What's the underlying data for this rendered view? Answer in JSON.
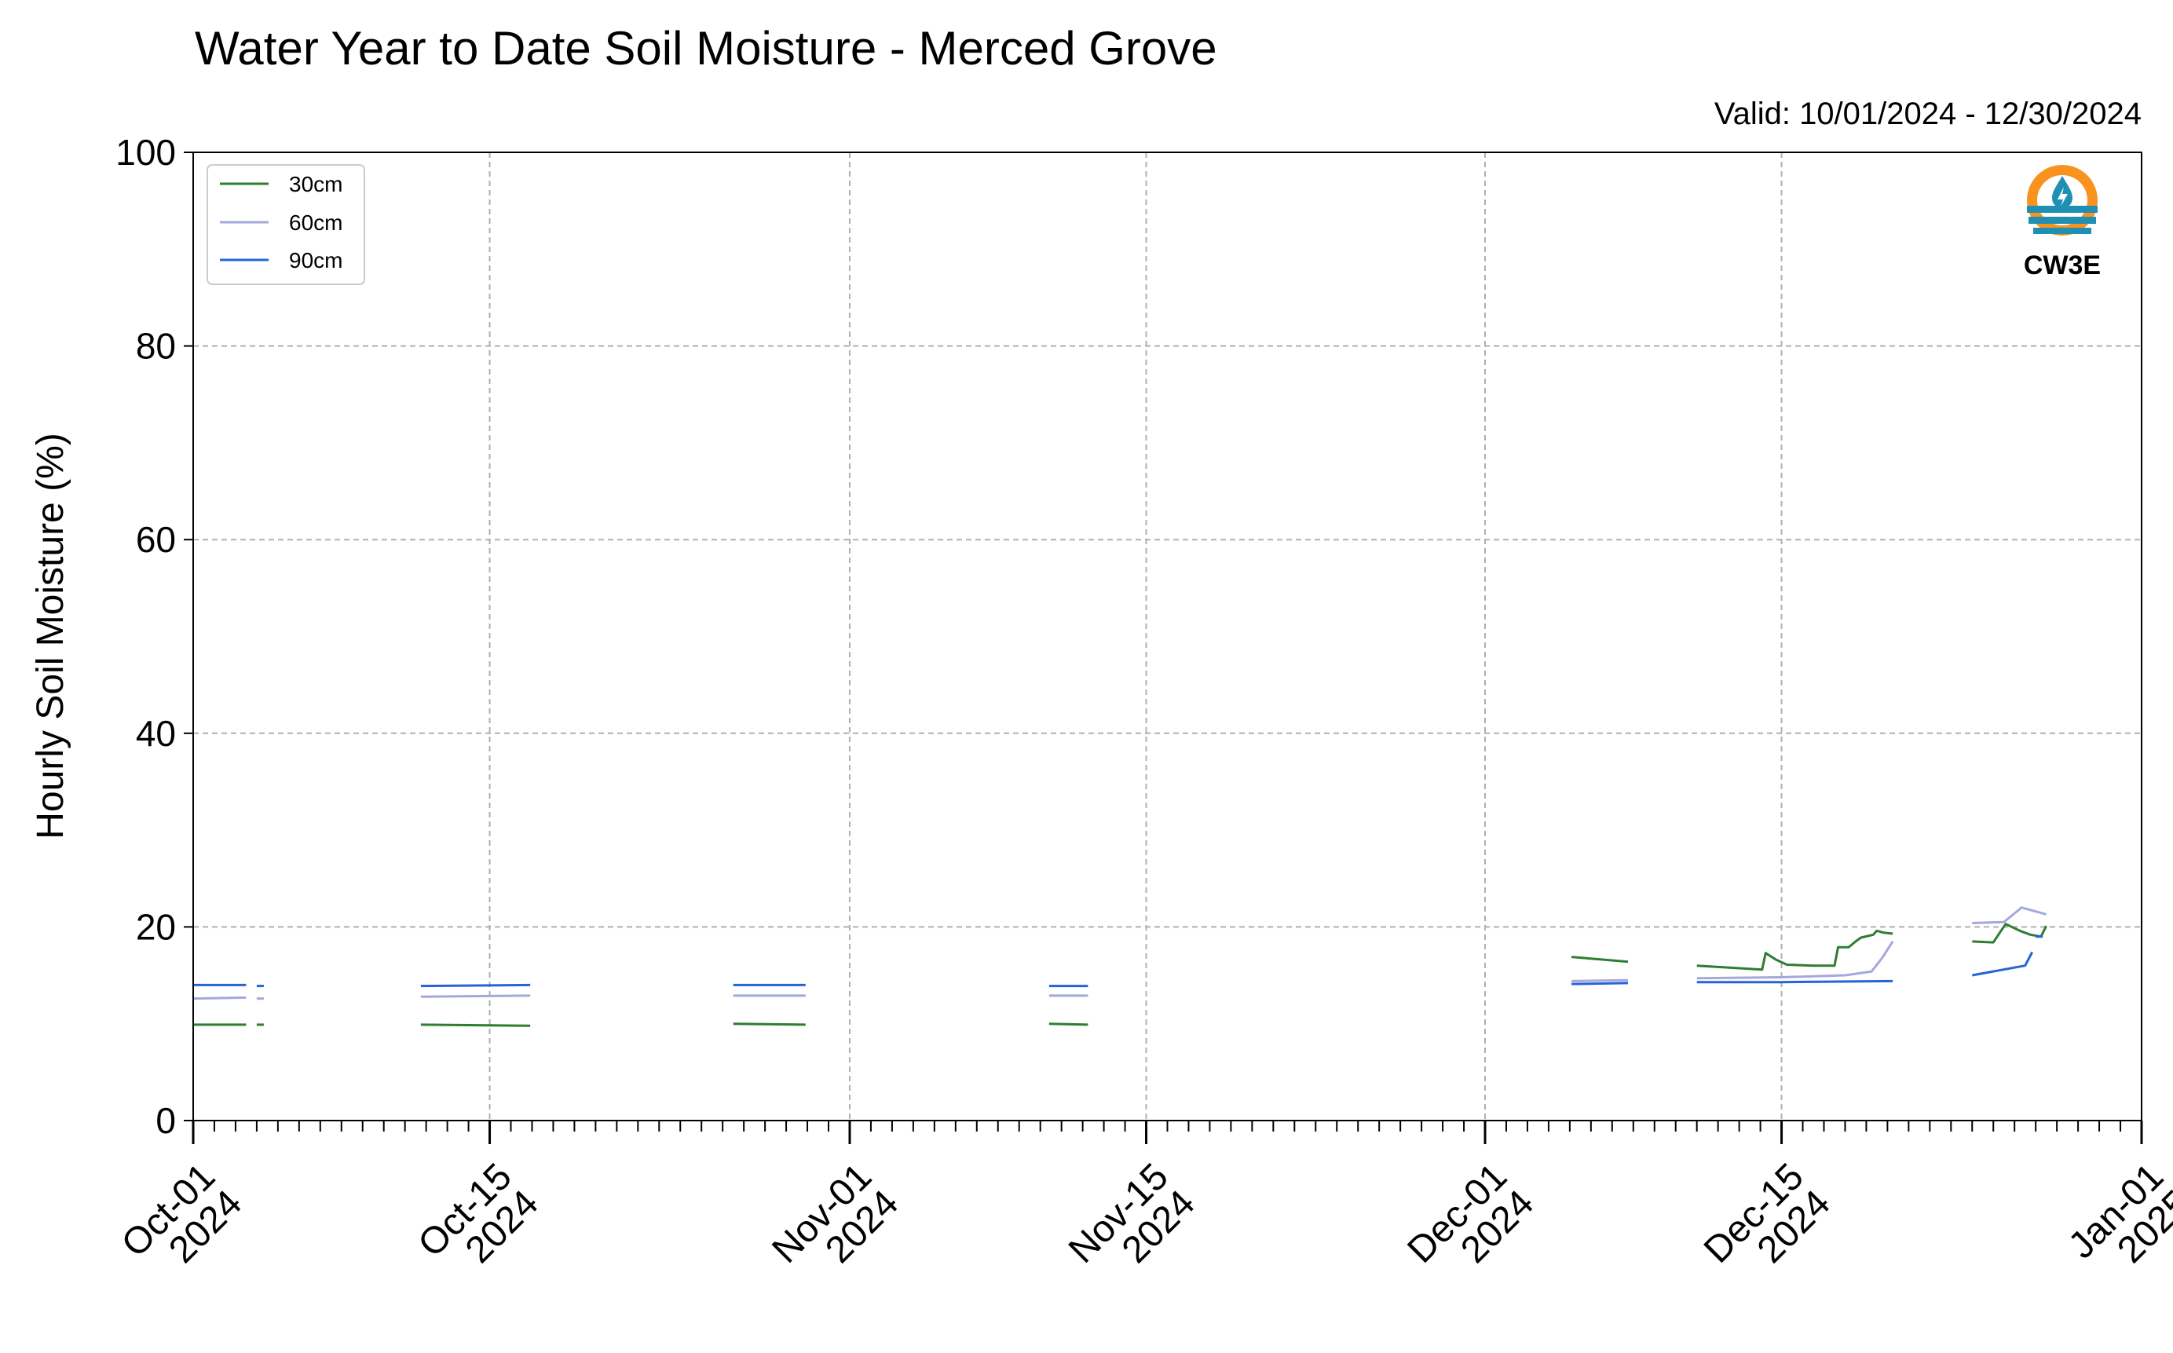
{
  "chart_data": {
    "type": "line",
    "title": "Water Year to Date Soil Moisture - Merced Grove",
    "valid_text": "Valid: 10/01/2024 - 12/30/2024",
    "xlabel": "",
    "ylabel": "Hourly Soil Moisture (%)",
    "ylim": [
      0,
      100
    ],
    "xlim": [
      "2024-10-01",
      "2025-01-01"
    ],
    "grid": true,
    "legend_placement": "top-left",
    "y_ticks": [
      "0",
      "20",
      "40",
      "60",
      "80",
      "100"
    ],
    "x_ticks": [
      {
        "date": "2024-10-01",
        "line1": "Oct-01",
        "line2": "2024"
      },
      {
        "date": "2024-10-15",
        "line1": "Oct-15",
        "line2": "2024"
      },
      {
        "date": "2024-11-01",
        "line1": "Nov-01",
        "line2": "2024"
      },
      {
        "date": "2024-11-15",
        "line1": "Nov-15",
        "line2": "2024"
      },
      {
        "date": "2024-12-01",
        "line1": "Dec-01",
        "line2": "2024"
      },
      {
        "date": "2024-12-15",
        "line1": "Dec-15",
        "line2": "2024"
      },
      {
        "date": "2025-01-01",
        "line1": "Jan-01",
        "line2": "2025"
      }
    ],
    "series": [
      {
        "name": "30cm",
        "color": "#2e7d32",
        "segments": [
          [
            [
              "2024-10-01T00",
              9.9
            ],
            [
              "2024-10-03T12",
              9.9
            ]
          ],
          [
            [
              "2024-10-04T00",
              9.9
            ],
            [
              "2024-10-04T08",
              9.9
            ]
          ],
          [
            [
              "2024-10-11T18",
              9.9
            ],
            [
              "2024-10-16T22",
              9.8
            ]
          ],
          [
            [
              "2024-10-26T12",
              10.0
            ],
            [
              "2024-10-29T22",
              9.9
            ]
          ],
          [
            [
              "2024-11-10T10",
              10.0
            ],
            [
              "2024-11-12T06",
              9.9
            ]
          ],
          [
            [
              "2024-12-05T02",
              16.9
            ],
            [
              "2024-12-07T18",
              16.4
            ]
          ],
          [
            [
              "2024-12-11T00",
              16.0
            ],
            [
              "2024-12-14T02",
              15.6
            ],
            [
              "2024-12-14T06",
              17.3
            ],
            [
              "2024-12-14T18",
              16.6
            ],
            [
              "2024-12-15T06",
              16.1
            ],
            [
              "2024-12-16T12",
              16.0
            ],
            [
              "2024-12-17T12",
              16.0
            ],
            [
              "2024-12-17T16",
              17.9
            ],
            [
              "2024-12-18T04",
              17.9
            ],
            [
              "2024-12-18T12",
              18.5
            ],
            [
              "2024-12-18T18",
              18.9
            ],
            [
              "2024-12-19T08",
              19.2
            ],
            [
              "2024-12-19T12",
              19.6
            ],
            [
              "2024-12-19T20",
              19.4
            ],
            [
              "2024-12-20T06",
              19.3
            ]
          ],
          [
            [
              "2024-12-24T00",
              18.5
            ],
            [
              "2024-12-25T00",
              18.4
            ],
            [
              "2024-12-25T08",
              19.5
            ],
            [
              "2024-12-25T14",
              20.3
            ],
            [
              "2024-12-26T06",
              19.6
            ],
            [
              "2024-12-26T18",
              19.2
            ],
            [
              "2024-12-27T06",
              19.0
            ],
            [
              "2024-12-27T12",
              20.1
            ]
          ]
        ]
      },
      {
        "name": "60cm",
        "color": "#a4a8dd",
        "segments": [
          [
            [
              "2024-10-01T00",
              12.6
            ],
            [
              "2024-10-03T12",
              12.7
            ]
          ],
          [
            [
              "2024-10-04T00",
              12.6
            ],
            [
              "2024-10-04T08",
              12.6
            ]
          ],
          [
            [
              "2024-10-11T18",
              12.8
            ],
            [
              "2024-10-16T22",
              12.9
            ]
          ],
          [
            [
              "2024-10-26T12",
              12.9
            ],
            [
              "2024-10-29T22",
              12.9
            ]
          ],
          [
            [
              "2024-11-10T10",
              12.9
            ],
            [
              "2024-11-12T06",
              12.9
            ]
          ],
          [
            [
              "2024-12-05T02",
              14.4
            ],
            [
              "2024-12-07T18",
              14.5
            ]
          ],
          [
            [
              "2024-12-11T00",
              14.7
            ],
            [
              "2024-12-15T00",
              14.8
            ],
            [
              "2024-12-18T00",
              15.0
            ],
            [
              "2024-12-19T06",
              15.4
            ],
            [
              "2024-12-19T18",
              16.8
            ],
            [
              "2024-12-20T06",
              18.5
            ]
          ],
          [
            [
              "2024-12-24T00",
              20.4
            ],
            [
              "2024-12-25T12",
              20.5
            ],
            [
              "2024-12-26T00",
              21.4
            ],
            [
              "2024-12-26T08",
              22.0
            ],
            [
              "2024-12-27T00",
              21.6
            ],
            [
              "2024-12-27T12",
              21.3
            ]
          ]
        ]
      },
      {
        "name": "90cm",
        "color": "#2563d9",
        "segments": [
          [
            [
              "2024-10-01T00",
              14.0
            ],
            [
              "2024-10-03T12",
              14.0
            ]
          ],
          [
            [
              "2024-10-04T00",
              13.9
            ],
            [
              "2024-10-04T08",
              13.9
            ]
          ],
          [
            [
              "2024-10-11T18",
              13.9
            ],
            [
              "2024-10-16T22",
              14.0
            ]
          ],
          [
            [
              "2024-10-26T12",
              14.0
            ],
            [
              "2024-10-29T22",
              14.0
            ]
          ],
          [
            [
              "2024-11-10T10",
              13.9
            ],
            [
              "2024-11-12T06",
              13.9
            ]
          ],
          [
            [
              "2024-12-05T02",
              14.1
            ],
            [
              "2024-12-07T18",
              14.2
            ]
          ],
          [
            [
              "2024-12-11T00",
              14.3
            ],
            [
              "2024-12-15T00",
              14.3
            ],
            [
              "2024-12-20T06",
              14.4
            ]
          ],
          [
            [
              "2024-12-24T00",
              15.0
            ],
            [
              "2024-12-26T12",
              16.0
            ],
            [
              "2024-12-26T20",
              17.4
            ]
          ],
          [
            [
              "2024-12-27T00",
              19.0
            ],
            [
              "2024-12-27T08",
              19.0
            ]
          ]
        ]
      }
    ]
  },
  "logo": {
    "text": "CW3E",
    "ring_color": "#f7931e",
    "wave_color": "#1f8fb3",
    "text_color": "#2a8fb8",
    "icon": "water-drop-icon"
  },
  "colors": {
    "grid": "#b0b0b0",
    "axis": "#000000",
    "legend_border": "#cccccc"
  }
}
